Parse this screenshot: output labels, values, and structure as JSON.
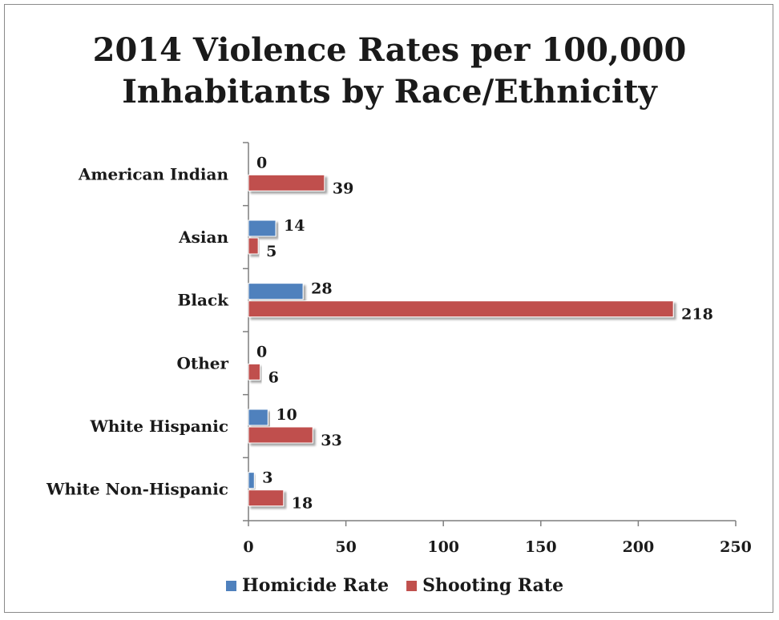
{
  "chart_data": {
    "type": "bar",
    "orientation": "horizontal",
    "title": [
      "2014 Violence Rates per 100,000",
      "Inhabitants by Race/Ethnicity"
    ],
    "categories": [
      "American Indian",
      "Asian",
      "Black",
      "Other",
      "White Hispanic",
      "White Non-Hispanic"
    ],
    "series": [
      {
        "name": "Homicide Rate",
        "color": "#4f81bd",
        "values": [
          0,
          14,
          28,
          0,
          10,
          3
        ]
      },
      {
        "name": "Shooting Rate",
        "color": "#c0504d",
        "values": [
          39,
          5,
          218,
          6,
          33,
          18
        ]
      }
    ],
    "xlim": [
      0,
      250
    ],
    "xticks": [
      0,
      50,
      100,
      150,
      200,
      250
    ],
    "grid": false,
    "legend_position": "bottom",
    "data_labels": true
  }
}
